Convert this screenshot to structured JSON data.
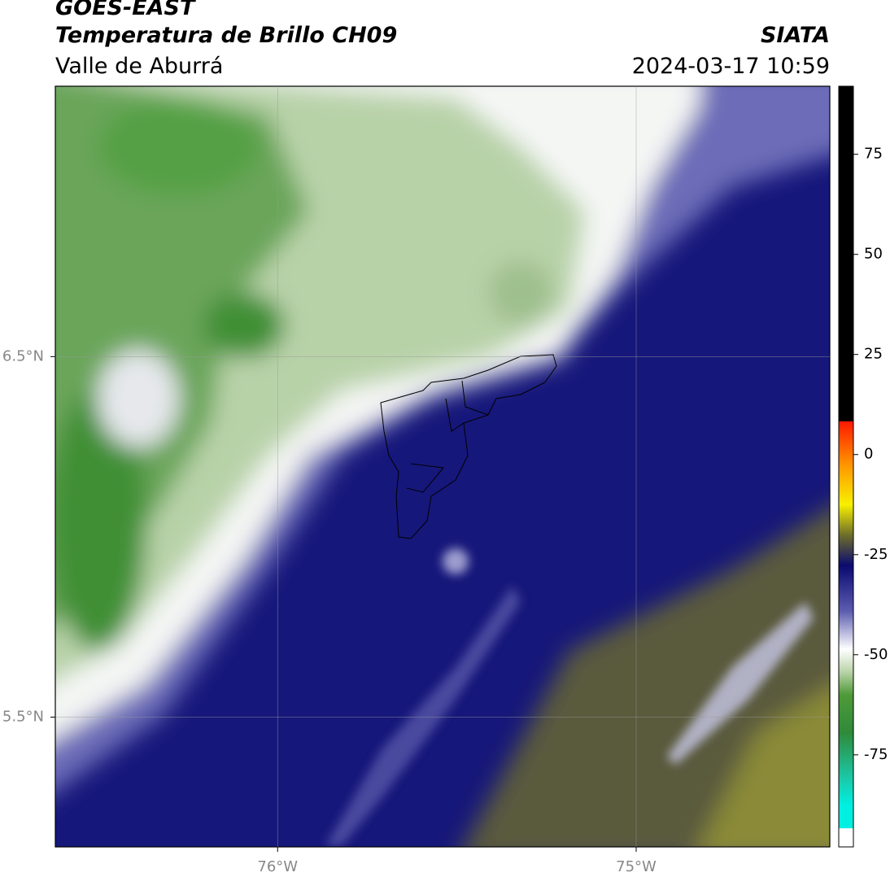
{
  "header": {
    "title": "GOES-EAST",
    "subtitle": "Temperatura de Brillo CH09",
    "region": "Valle de Aburrá",
    "brand": "SIATA",
    "timestamp": "2024-03-17 10:59"
  },
  "map": {
    "xlim": [
      -76.62,
      -74.46
    ],
    "ylim": [
      5.14,
      7.25
    ],
    "xticks": [
      {
        "value": -76,
        "label": "76°W"
      },
      {
        "value": -75,
        "label": "75°W"
      }
    ],
    "yticks": [
      {
        "value": 6.5,
        "label": "6.5°N"
      },
      {
        "value": 5.5,
        "label": "5.5°N"
      }
    ],
    "grid": true
  },
  "colorbar": {
    "lim": [
      -98,
      92
    ],
    "ticks": [
      75,
      50,
      25,
      0,
      -25,
      -50,
      -75
    ]
  }
}
